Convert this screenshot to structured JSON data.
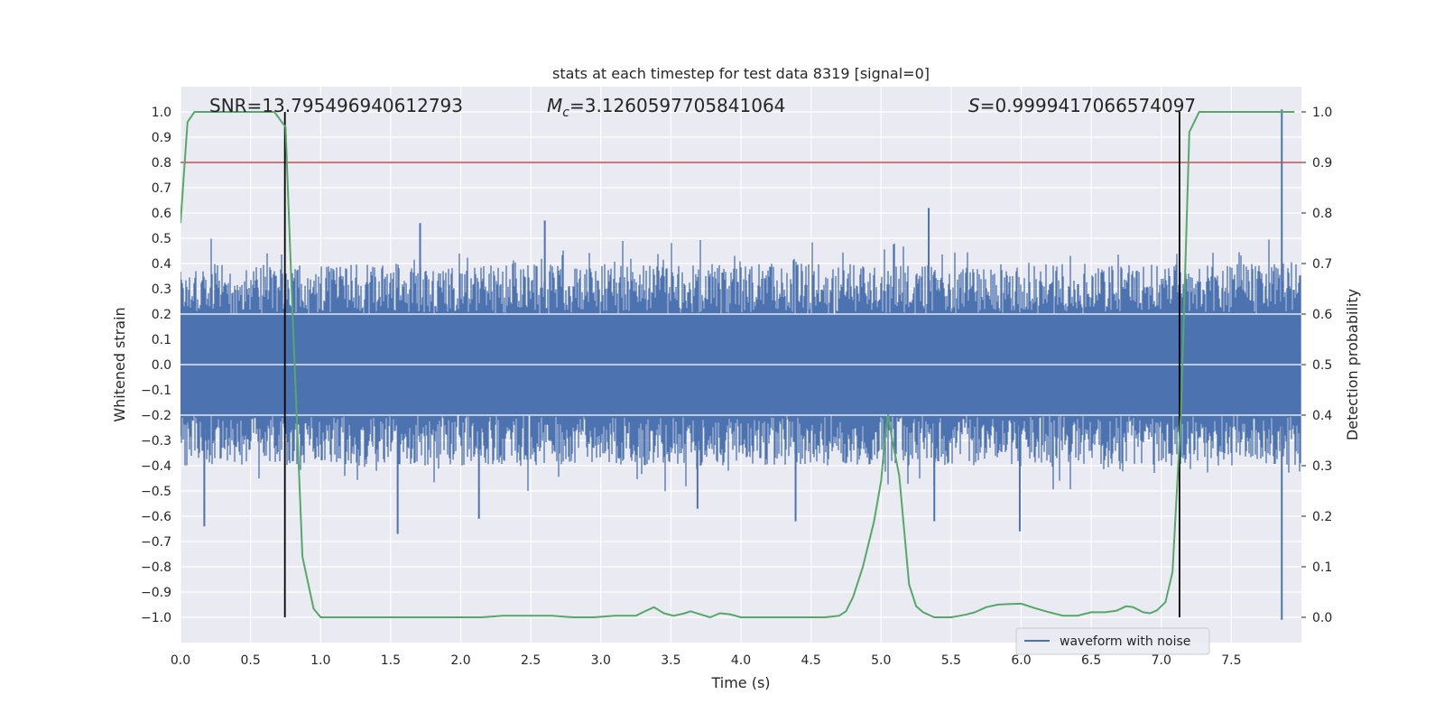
{
  "chart_data": {
    "type": "line",
    "title": "stats at each timestep for test data 8319 [signal=0]",
    "xlabel": "Time (s)",
    "ylabel": "Whitened strain",
    "ylabel_right": "Detection probability",
    "xlim": [
      0.0,
      8.0
    ],
    "ylim": [
      -1.1,
      1.1
    ],
    "ylim_right": [
      -0.05,
      1.05
    ],
    "x_ticks": [
      "0.0",
      "0.5",
      "1.0",
      "1.5",
      "2.0",
      "2.5",
      "3.0",
      "3.5",
      "4.0",
      "4.5",
      "5.0",
      "5.5",
      "6.0",
      "6.5",
      "7.0",
      "7.5"
    ],
    "y_ticks": [
      "1.0",
      "0.9",
      "0.8",
      "0.7",
      "0.6",
      "0.5",
      "0.4",
      "0.3",
      "0.2",
      "0.1",
      "0.0",
      "−0.1",
      "−0.2",
      "−0.3",
      "−0.4",
      "−0.5",
      "−0.6",
      "−0.7",
      "−0.8",
      "−0.9",
      "−1.0"
    ],
    "y_ticks_right": [
      "1.0",
      "0.9",
      "0.8",
      "0.7",
      "0.6",
      "0.5",
      "0.4",
      "0.3",
      "0.2",
      "0.1",
      "0.0"
    ],
    "grid": true,
    "legend_position": "bottom-right",
    "annotations": {
      "snr": "SNR=13.795496940612793",
      "mc_symbol": "M",
      "mc_sub": "c",
      "mc_value": "=3.1260597705841064",
      "s_symbol": "S",
      "s_value": "=0.9999417066574097"
    },
    "series": [
      {
        "name": "waveform with noise",
        "color": "#4c72b0",
        "axis": "left",
        "x_range": [
          0.0,
          7.995
        ],
        "envelope_high": 0.4,
        "envelope_low": -0.4,
        "peaks": [
          {
            "x": 0.17,
            "y": -0.64
          },
          {
            "x": 1.55,
            "y": -0.67
          },
          {
            "x": 1.71,
            "y": 0.56
          },
          {
            "x": 2.13,
            "y": -0.61
          },
          {
            "x": 2.6,
            "y": 0.57
          },
          {
            "x": 3.69,
            "y": -0.57
          },
          {
            "x": 4.39,
            "y": -0.62
          },
          {
            "x": 5.34,
            "y": 0.62
          },
          {
            "x": 5.38,
            "y": -0.62
          },
          {
            "x": 5.99,
            "y": -0.66
          },
          {
            "x": 7.86,
            "y": 1.01
          },
          {
            "x": 7.86,
            "y": -1.01
          }
        ]
      },
      {
        "name": "detection probability",
        "color": "#55a868",
        "axis": "right",
        "x": [
          0.0,
          0.05,
          0.1,
          0.15,
          0.2,
          0.3,
          0.4,
          0.5,
          0.6,
          0.67,
          0.75,
          0.8,
          0.87,
          0.95,
          1.0,
          1.1,
          1.2,
          1.3,
          1.4,
          1.5,
          1.75,
          2.0,
          2.15,
          2.3,
          2.5,
          2.65,
          2.8,
          2.95,
          3.1,
          3.25,
          3.3,
          3.38,
          3.45,
          3.52,
          3.6,
          3.64,
          3.72,
          3.78,
          3.85,
          3.92,
          4.0,
          4.2,
          4.4,
          4.6,
          4.7,
          4.75,
          4.8,
          4.87,
          4.95,
          5.0,
          5.03,
          5.05,
          5.08,
          5.13,
          5.2,
          5.25,
          5.3,
          5.38,
          5.5,
          5.6,
          5.67,
          5.75,
          5.83,
          5.9,
          6.0,
          6.1,
          6.2,
          6.3,
          6.4,
          6.5,
          6.6,
          6.68,
          6.75,
          6.8,
          6.87,
          6.92,
          6.97,
          7.03,
          7.08,
          7.14,
          7.2,
          7.27,
          7.35,
          7.5,
          7.95
        ],
        "y": [
          0.78,
          0.98,
          1.0,
          1.0,
          1.0,
          1.0,
          1.0,
          1.0,
          1.0,
          1.0,
          0.97,
          0.6,
          0.12,
          0.017,
          0.0,
          0.0,
          0.0,
          0.0,
          0.0,
          0.0,
          0.0,
          0.0,
          0.0,
          0.003,
          0.003,
          0.003,
          0.0,
          0.0,
          0.003,
          0.003,
          0.01,
          0.02,
          0.008,
          0.003,
          0.008,
          0.012,
          0.005,
          0.0,
          0.008,
          0.006,
          0.0,
          0.0,
          0.0,
          0.0,
          0.003,
          0.012,
          0.04,
          0.1,
          0.19,
          0.27,
          0.36,
          0.4,
          0.35,
          0.28,
          0.065,
          0.022,
          0.01,
          0.0,
          0.0,
          0.005,
          0.01,
          0.02,
          0.025,
          0.026,
          0.027,
          0.018,
          0.01,
          0.003,
          0.003,
          0.01,
          0.01,
          0.013,
          0.022,
          0.02,
          0.01,
          0.008,
          0.014,
          0.03,
          0.09,
          0.4,
          0.96,
          1.0,
          1.0,
          1.0,
          1.0
        ]
      }
    ],
    "reference_lines": [
      {
        "orientation": "horizontal",
        "axis": "left",
        "value": 0.8,
        "color": "#c44e52"
      },
      {
        "orientation": "vertical",
        "x": 0.745,
        "y_from": -1.0,
        "y_to": 1.0,
        "color": "#000000"
      },
      {
        "orientation": "vertical",
        "x": 7.13,
        "y_from": -1.0,
        "y_to": 1.0,
        "color": "#000000"
      }
    ]
  }
}
